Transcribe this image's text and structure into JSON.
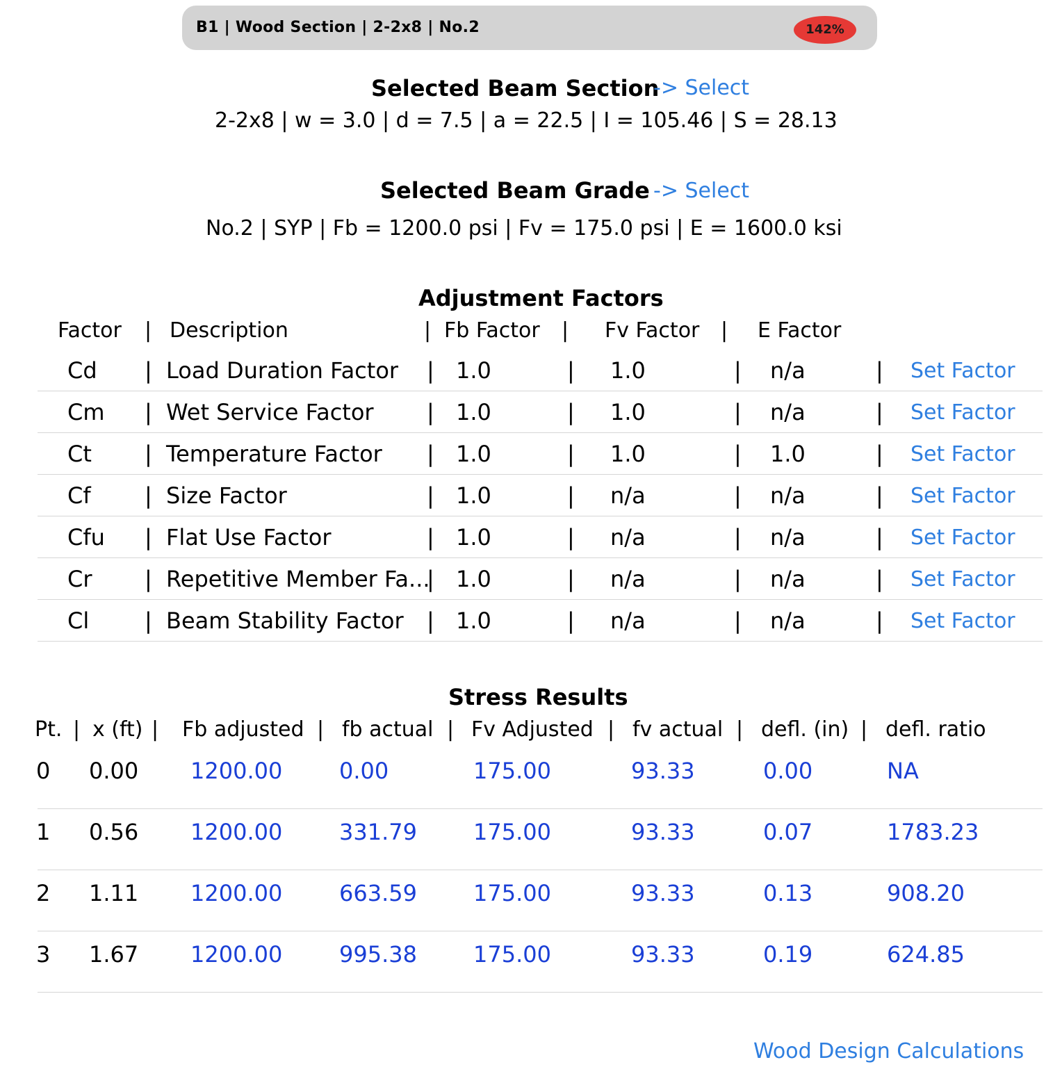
{
  "header": {
    "summary": "B1  |  Wood Section   |   2-2x8  |  No.2",
    "badge": "142%"
  },
  "section": {
    "title": "Selected Beam Section",
    "select_label": "-> Select",
    "details": "2-2x8  |  w = 3.0  |  d = 7.5  |  a = 22.5  |  I = 105.46  |  S = 28.13"
  },
  "grade": {
    "title": "Selected Beam Grade",
    "select_label": "-> Select",
    "details": "No.2  |  SYP  |  Fb = 1200.0 psi  |  Fv = 175.0 psi  |   E = 1600.0 ksi"
  },
  "adjustment": {
    "title": "Adjustment Factors",
    "headers": [
      "Factor",
      "|",
      "Description",
      "|",
      "Fb Factor",
      "|",
      "Fv Factor",
      "|",
      "E Factor"
    ],
    "set_label": "Set Factor",
    "rows": [
      {
        "factor": "Cd",
        "description": "Load Duration Factor",
        "fb": "1.0",
        "fv": "1.0",
        "e": "n/a"
      },
      {
        "factor": "Cm",
        "description": "Wet Service Factor",
        "fb": "1.0",
        "fv": "1.0",
        "e": "n/a"
      },
      {
        "factor": "Ct",
        "description": "Temperature Factor",
        "fb": "1.0",
        "fv": "1.0",
        "e": "1.0"
      },
      {
        "factor": "Cf",
        "description": "Size Factor",
        "fb": "1.0",
        "fv": "n/a",
        "e": "n/a"
      },
      {
        "factor": "Cfu",
        "description": "Flat Use Factor",
        "fb": "1.0",
        "fv": "n/a",
        "e": "n/a"
      },
      {
        "factor": "Cr",
        "description": "Repetitive Member Fa...",
        "fb": "1.0",
        "fv": "n/a",
        "e": "n/a"
      },
      {
        "factor": "Cl",
        "description": "Beam Stability Factor",
        "fb": "1.0",
        "fv": "n/a",
        "e": "n/a"
      }
    ],
    "pipe": "|"
  },
  "stress": {
    "title": "Stress Results",
    "headers": [
      "Pt.",
      "|",
      "x (ft)",
      "|",
      "Fb adjusted",
      "|",
      "fb actual",
      "|",
      "Fv Adjusted",
      "|",
      "fv actual",
      "|",
      "defl. (in)",
      "|",
      "defl. ratio"
    ],
    "rows": [
      {
        "pt": "0",
        "x": "0.00",
        "fb_adj": "1200.00",
        "fb_act": "0.00",
        "fv_adj": "175.00",
        "fv_act": "93.33",
        "defl": "0.00",
        "ratio": "NA"
      },
      {
        "pt": "1",
        "x": "0.56",
        "fb_adj": "1200.00",
        "fb_act": "331.79",
        "fv_adj": "175.00",
        "fv_act": "93.33",
        "defl": "0.07",
        "ratio": "1783.23"
      },
      {
        "pt": "2",
        "x": "1.11",
        "fb_adj": "1200.00",
        "fb_act": "663.59",
        "fv_adj": "175.00",
        "fv_act": "93.33",
        "defl": "0.13",
        "ratio": "908.20"
      },
      {
        "pt": "3",
        "x": "1.67",
        "fb_adj": "1200.00",
        "fb_act": "995.38",
        "fv_adj": "175.00",
        "fv_act": "93.33",
        "defl": "0.19",
        "ratio": "624.85"
      }
    ]
  },
  "footer": {
    "link": "Wood Design Calculations"
  },
  "colors": {
    "link": "#2f7fe0",
    "value_blue": "#1a3fd6",
    "badge": "#e53935",
    "topbar": "#d3d3d3"
  }
}
